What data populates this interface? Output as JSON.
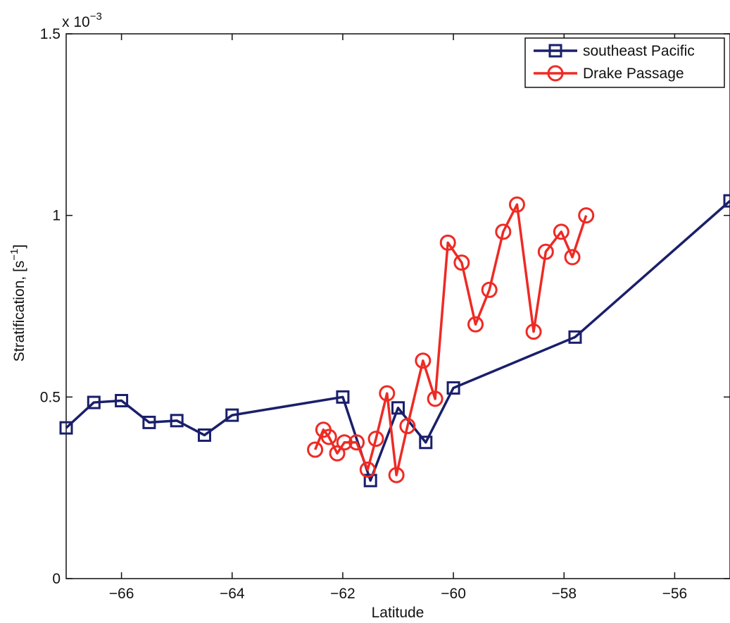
{
  "chart_data": {
    "type": "line",
    "xlabel": "Latitude",
    "ylabel": "Stratification, [s",
    "ylabel_exponent": "−1",
    "ylabel_close": "]",
    "y_multiplier": "x 10",
    "y_multiplier_exponent": "−3",
    "xlim": [
      -67,
      -55
    ],
    "ylim": [
      0,
      1.5
    ],
    "xticks": [
      -66,
      -64,
      -62,
      -60,
      -58,
      -56
    ],
    "xtick_labels": [
      "−66",
      "−64",
      "−62",
      "−60",
      "−58",
      "−56"
    ],
    "yticks": [
      0,
      0.5,
      1,
      1.5
    ],
    "ytick_labels": [
      "0",
      "0.5",
      "1",
      "1.5"
    ],
    "grid": false,
    "legend_position": "top-right",
    "series": [
      {
        "name": "southeast Pacific",
        "color": "#1a1f6b",
        "marker": "square",
        "x": [
          -67,
          -66.5,
          -66,
          -65.5,
          -65,
          -64.5,
          -64,
          -62,
          -61.5,
          -61,
          -60.5,
          -60,
          -57.8,
          -55
        ],
        "y": [
          0.415,
          0.485,
          0.49,
          0.43,
          0.435,
          0.395,
          0.45,
          0.5,
          0.27,
          0.47,
          0.375,
          0.525,
          0.665,
          1.04
        ]
      },
      {
        "name": "Drake Passage",
        "color": "#ee2a24",
        "marker": "circle",
        "x": [
          -62.5,
          -62.35,
          -62.25,
          -62.1,
          -61.97,
          -61.75,
          -61.55,
          -61.4,
          -61.2,
          -61.03,
          -60.83,
          -60.55,
          -60.33,
          -60.1,
          -59.85,
          -59.6,
          -59.35,
          -59.1,
          -58.85,
          -58.55,
          -58.33,
          -58.05,
          -57.85,
          -57.6
        ],
        "y": [
          0.355,
          0.41,
          0.39,
          0.345,
          0.375,
          0.375,
          0.3,
          0.385,
          0.51,
          0.285,
          0.42,
          0.6,
          0.495,
          0.925,
          0.87,
          0.7,
          0.795,
          0.955,
          1.03,
          0.68,
          0.9,
          0.955,
          0.885,
          1.0
        ]
      }
    ]
  }
}
